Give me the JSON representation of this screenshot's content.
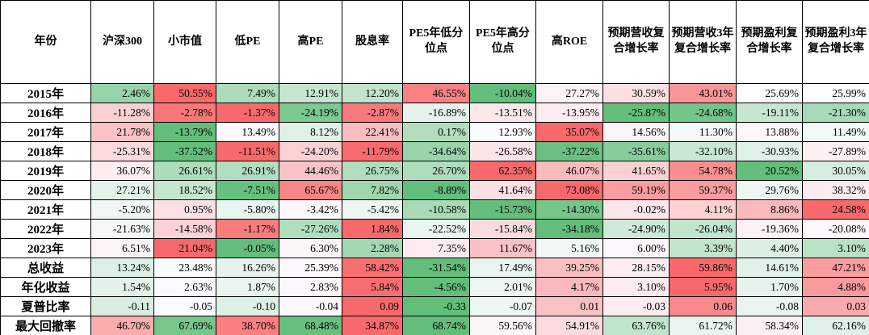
{
  "chart_data": {
    "type": "table",
    "title": "",
    "colormap": {
      "low": "#63BE7B",
      "mid": "#FCFCFF",
      "high": "#F8696B",
      "grid": "#000000"
    },
    "columns": [
      "年份",
      "沪深300",
      "小市值",
      "低PE",
      "高PE",
      "股息率",
      "PE5年低分位点",
      "PE5年高分位点",
      "高ROE",
      "预期营收复合增长率",
      "预期营收3年复合增长率",
      "预期盈利复合增长率",
      "预期盈利3年复合增长率"
    ],
    "rows": [
      {
        "label": "2015年",
        "invert_scale": false,
        "values": [
          "2.46%",
          "50.55%",
          "7.49%",
          "12.91%",
          "12.20%",
          "46.55%",
          "-10.04%",
          "27.27%",
          "30.59%",
          "43.01%",
          "25.69%",
          "25.99%"
        ]
      },
      {
        "label": "2016年",
        "invert_scale": false,
        "values": [
          "-11.28%",
          "-2.78%",
          "-1.37%",
          "-24.19%",
          "-2.87%",
          "-16.89%",
          "-13.51%",
          "-13.95%",
          "-25.87%",
          "-24.68%",
          "-19.11%",
          "-21.30%"
        ]
      },
      {
        "label": "2017年",
        "invert_scale": false,
        "values": [
          "21.78%",
          "-13.79%",
          "13.49%",
          "8.12%",
          "22.41%",
          "0.17%",
          "12.93%",
          "35.07%",
          "14.56%",
          "11.30%",
          "13.88%",
          "11.49%"
        ]
      },
      {
        "label": "2018年",
        "invert_scale": false,
        "values": [
          "-25.31%",
          "-37.52%",
          "-11.51%",
          "-24.20%",
          "-11.79%",
          "-34.64%",
          "-26.58%",
          "-37.22%",
          "-35.61%",
          "-32.10%",
          "-30.93%",
          "-27.89%"
        ]
      },
      {
        "label": "2019年",
        "invert_scale": false,
        "values": [
          "36.07%",
          "26.61%",
          "26.91%",
          "44.46%",
          "26.75%",
          "26.70%",
          "62.35%",
          "46.07%",
          "41.65%",
          "54.78%",
          "20.52%",
          "30.05%"
        ]
      },
      {
        "label": "2020年",
        "invert_scale": false,
        "values": [
          "27.21%",
          "18.52%",
          "-7.51%",
          "65.67%",
          "7.82%",
          "-8.89%",
          "41.64%",
          "73.08%",
          "59.19%",
          "59.37%",
          "29.76%",
          "38.32%"
        ]
      },
      {
        "label": "2021年",
        "invert_scale": false,
        "values": [
          "-5.20%",
          "0.95%",
          "-5.80%",
          "-3.42%",
          "-5.42%",
          "-10.58%",
          "-15.73%",
          "-14.30%",
          "-0.02%",
          "4.11%",
          "8.86%",
          "24.58%"
        ]
      },
      {
        "label": "2022年",
        "invert_scale": false,
        "values": [
          "-21.63%",
          "-14.58%",
          "-1.17%",
          "-27.26%",
          "1.84%",
          "-22.52%",
          "-15.84%",
          "-34.18%",
          "-24.90%",
          "-26.04%",
          "-19.36%",
          "-20.08%"
        ]
      },
      {
        "label": "2023年",
        "invert_scale": false,
        "values": [
          "6.51%",
          "21.04%",
          "-0.05%",
          "6.30%",
          "2.28%",
          "7.35%",
          "11.67%",
          "5.16%",
          "6.00%",
          "3.39%",
          "4.40%",
          "3.10%"
        ]
      },
      {
        "label": "总收益",
        "invert_scale": false,
        "values": [
          "13.24%",
          "23.48%",
          "16.26%",
          "25.39%",
          "58.42%",
          "-31.54%",
          "17.49%",
          "39.25%",
          "28.15%",
          "59.86%",
          "14.61%",
          "47.21%"
        ]
      },
      {
        "label": "年化收益",
        "invert_scale": false,
        "values": [
          "1.54%",
          "2.63%",
          "1.87%",
          "2.83%",
          "5.84%",
          "-4.56%",
          "2.01%",
          "4.17%",
          "3.10%",
          "5.95%",
          "1.70%",
          "4.88%"
        ]
      },
      {
        "label": "夏普比率",
        "invert_scale": false,
        "values": [
          "-0.11",
          "-0.05",
          "-0.10",
          "-0.04",
          "0.09",
          "-0.33",
          "-0.07",
          "0.01",
          "-0.03",
          "0.06",
          "-0.08",
          "0.03"
        ]
      },
      {
        "label": "最大回撤率",
        "invert_scale": true,
        "values": [
          "46.70%",
          "67.69%",
          "38.70%",
          "68.48%",
          "34.87%",
          "68.74%",
          "59.56%",
          "54.91%",
          "63.76%",
          "61.72%",
          "58.34%",
          "62.16%"
        ]
      }
    ]
  }
}
